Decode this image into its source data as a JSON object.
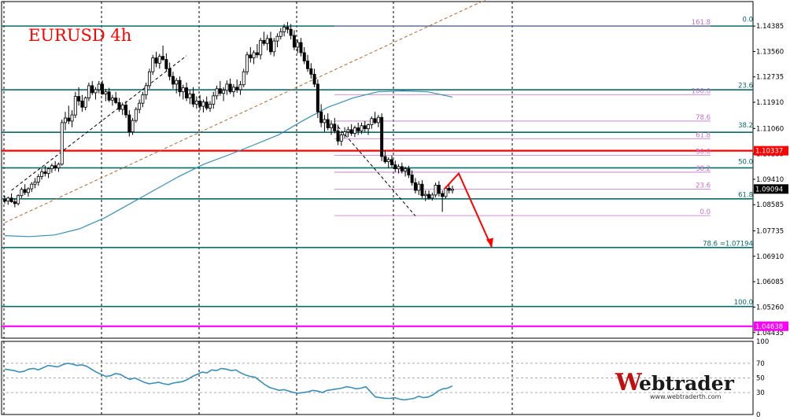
{
  "chart_data": [
    {
      "type": "candlestick",
      "title": "EURUSD 4h",
      "symbol": "EURUSD",
      "timeframe": "4h",
      "ylim": [
        1.0425,
        1.1518
      ],
      "price_axis_ticks": [
        "1.14385",
        "1.13560",
        "1.12735",
        "1.11910",
        "1.11060",
        "1.10235",
        "1.09410",
        "1.08585",
        "1.07735",
        "1.06910",
        "1.06085",
        "1.05260",
        "1.04435"
      ],
      "current_price": "1.09094",
      "candles_ohlc": [
        [
          1.0875,
          1.0888,
          1.0862,
          1.087
        ],
        [
          1.087,
          1.0885,
          1.0858,
          1.088
        ],
        [
          1.088,
          1.0895,
          1.0865,
          1.0868
        ],
        [
          1.0868,
          1.088,
          1.085,
          1.0862
        ],
        [
          1.0862,
          1.0892,
          1.0856,
          1.0888
        ],
        [
          1.0888,
          1.0915,
          1.088,
          1.0908
        ],
        [
          1.0908,
          1.0925,
          1.089,
          1.0898
        ],
        [
          1.0898,
          1.0915,
          1.0885,
          1.091
        ],
        [
          1.091,
          1.0932,
          1.09,
          1.0925
        ],
        [
          1.0925,
          1.0945,
          1.0912,
          1.0932
        ],
        [
          1.0932,
          1.0958,
          1.092,
          1.095
        ],
        [
          1.095,
          1.0975,
          1.094,
          1.0965
        ],
        [
          1.0965,
          1.0985,
          1.095,
          1.096
        ],
        [
          1.096,
          1.098,
          1.0945,
          1.0975
        ],
        [
          1.0975,
          1.0992,
          1.0962,
          1.0985
        ],
        [
          1.0985,
          1.1,
          1.0968,
          1.0978
        ],
        [
          1.0978,
          1.0995,
          1.0965,
          1.099
        ],
        [
          1.099,
          1.1135,
          1.0985,
          1.1125
        ],
        [
          1.1125,
          1.116,
          1.11,
          1.114
        ],
        [
          1.114,
          1.118,
          1.112,
          1.113
        ],
        [
          1.113,
          1.1165,
          1.111,
          1.115
        ],
        [
          1.115,
          1.1225,
          1.114,
          1.121
        ],
        [
          1.121,
          1.124,
          1.118,
          1.1195
        ],
        [
          1.1195,
          1.1215,
          1.116,
          1.1175
        ],
        [
          1.1175,
          1.121,
          1.1165,
          1.1205
        ],
        [
          1.1205,
          1.1255,
          1.1195,
          1.1245
        ],
        [
          1.1245,
          1.126,
          1.1215,
          1.1222
        ],
        [
          1.1222,
          1.124,
          1.12,
          1.1232
        ],
        [
          1.1232,
          1.126,
          1.122,
          1.125
        ],
        [
          1.125,
          1.1262,
          1.1215,
          1.1218
        ],
        [
          1.1218,
          1.1235,
          1.1195,
          1.1225
        ],
        [
          1.1225,
          1.1238,
          1.1192,
          1.1198
        ],
        [
          1.1198,
          1.1215,
          1.118,
          1.1205
        ],
        [
          1.1205,
          1.1225,
          1.1185,
          1.119
        ],
        [
          1.119,
          1.1205,
          1.116,
          1.1168
        ],
        [
          1.1168,
          1.119,
          1.115,
          1.1182
        ],
        [
          1.1182,
          1.1195,
          1.114,
          1.115
        ],
        [
          1.115,
          1.1165,
          1.108,
          1.1095
        ],
        [
          1.1095,
          1.114,
          1.1085,
          1.1132
        ],
        [
          1.1132,
          1.1175,
          1.1125,
          1.1168
        ],
        [
          1.1168,
          1.12,
          1.1155,
          1.1188
        ],
        [
          1.1188,
          1.1225,
          1.1175,
          1.1215
        ],
        [
          1.1215,
          1.1255,
          1.12,
          1.1245
        ],
        [
          1.1245,
          1.13,
          1.1235,
          1.129
        ],
        [
          1.129,
          1.1345,
          1.128,
          1.1335
        ],
        [
          1.1335,
          1.1355,
          1.1305,
          1.1318
        ],
        [
          1.1318,
          1.1348,
          1.13,
          1.134
        ],
        [
          1.134,
          1.1375,
          1.1325,
          1.133
        ],
        [
          1.133,
          1.135,
          1.129,
          1.13
        ],
        [
          1.13,
          1.132,
          1.1262,
          1.1275
        ],
        [
          1.1275,
          1.129,
          1.1235,
          1.125
        ],
        [
          1.125,
          1.127,
          1.122,
          1.1262
        ],
        [
          1.1262,
          1.1275,
          1.121,
          1.1225
        ],
        [
          1.1225,
          1.1248,
          1.12,
          1.1238
        ],
        [
          1.1238,
          1.1255,
          1.1195,
          1.1205
        ],
        [
          1.1205,
          1.123,
          1.1185,
          1.1218
        ],
        [
          1.1218,
          1.124,
          1.1175,
          1.1185
        ],
        [
          1.1185,
          1.121,
          1.117,
          1.1195
        ],
        [
          1.1195,
          1.1215,
          1.1165,
          1.1178
        ],
        [
          1.1178,
          1.12,
          1.1158,
          1.1192
        ],
        [
          1.1192,
          1.121,
          1.1165,
          1.1172
        ],
        [
          1.1172,
          1.1195,
          1.116,
          1.1185
        ],
        [
          1.1185,
          1.1225,
          1.117,
          1.1212
        ],
        [
          1.1212,
          1.1245,
          1.12,
          1.1235
        ],
        [
          1.1235,
          1.126,
          1.1212,
          1.122
        ],
        [
          1.122,
          1.124,
          1.1195,
          1.123
        ],
        [
          1.123,
          1.1262,
          1.1215,
          1.125
        ],
        [
          1.125,
          1.1268,
          1.1218,
          1.1225
        ],
        [
          1.1225,
          1.125,
          1.1208,
          1.124
        ],
        [
          1.124,
          1.1265,
          1.1222,
          1.1232
        ],
        [
          1.1232,
          1.126,
          1.1215,
          1.1248
        ],
        [
          1.1248,
          1.13,
          1.124,
          1.129
        ],
        [
          1.129,
          1.1355,
          1.128,
          1.1345
        ],
        [
          1.1345,
          1.137,
          1.132,
          1.1335
        ],
        [
          1.1335,
          1.136,
          1.1315,
          1.1352
        ],
        [
          1.1352,
          1.138,
          1.1335,
          1.1345
        ],
        [
          1.1345,
          1.14,
          1.133,
          1.1392
        ],
        [
          1.1392,
          1.142,
          1.1375,
          1.1382
        ],
        [
          1.1382,
          1.141,
          1.136,
          1.1398
        ],
        [
          1.1398,
          1.142,
          1.1345,
          1.1355
        ],
        [
          1.1355,
          1.14,
          1.134,
          1.139
        ],
        [
          1.139,
          1.1415,
          1.137,
          1.1405
        ],
        [
          1.1405,
          1.1432,
          1.1395,
          1.142
        ],
        [
          1.142,
          1.1445,
          1.1405,
          1.1435
        ],
        [
          1.1435,
          1.1452,
          1.1415,
          1.1428
        ],
        [
          1.1428,
          1.1445,
          1.1395,
          1.1408
        ],
        [
          1.1408,
          1.1425,
          1.136,
          1.137
        ],
        [
          1.137,
          1.1395,
          1.135,
          1.1385
        ],
        [
          1.1385,
          1.14,
          1.134,
          1.1352
        ],
        [
          1.1352,
          1.137,
          1.1315,
          1.1325
        ],
        [
          1.1325,
          1.1345,
          1.129,
          1.13
        ],
        [
          1.13,
          1.1318,
          1.1268,
          1.1282
        ],
        [
          1.1282,
          1.13,
          1.124,
          1.125
        ],
        [
          1.125,
          1.1265,
          1.114,
          1.116
        ],
        [
          1.116,
          1.1185,
          1.111,
          1.1125
        ],
        [
          1.1125,
          1.115,
          1.1095,
          1.1135
        ],
        [
          1.1135,
          1.1155,
          1.11,
          1.1108
        ],
        [
          1.1108,
          1.1132,
          1.1085,
          1.112
        ],
        [
          1.112,
          1.114,
          1.109,
          1.1098
        ],
        [
          1.1098,
          1.1118,
          1.1052,
          1.1065
        ],
        [
          1.1065,
          1.1095,
          1.105,
          1.1085
        ],
        [
          1.1085,
          1.111,
          1.1075,
          1.1095
        ],
        [
          1.1095,
          1.1112,
          1.1078,
          1.1102
        ],
        [
          1.1102,
          1.112,
          1.1082,
          1.109
        ],
        [
          1.109,
          1.1115,
          1.1078,
          1.1108
        ],
        [
          1.1108,
          1.1125,
          1.1085,
          1.1098
        ],
        [
          1.1098,
          1.1125,
          1.1088,
          1.1115
        ],
        [
          1.1115,
          1.113,
          1.1095,
          1.1105
        ],
        [
          1.1105,
          1.1122,
          1.1085,
          1.1118
        ],
        [
          1.1118,
          1.1145,
          1.1105,
          1.1138
        ],
        [
          1.1138,
          1.116,
          1.112,
          1.1125
        ],
        [
          1.1125,
          1.115,
          1.111,
          1.1142
        ],
        [
          1.1142,
          1.1155,
          1.1,
          1.1015
        ],
        [
          1.1015,
          1.1035,
          1.0992,
          1.0998
        ],
        [
          1.0998,
          1.1012,
          1.0978,
          1.1005
        ],
        [
          1.1005,
          1.1018,
          1.098,
          1.0988
        ],
        [
          1.0988,
          1.1002,
          1.0965,
          1.0975
        ],
        [
          1.0975,
          1.099,
          1.096,
          1.0982
        ],
        [
          1.0982,
          1.0995,
          1.096,
          1.0968
        ],
        [
          1.0968,
          1.0982,
          1.095,
          1.0975
        ],
        [
          1.0975,
          1.0985,
          1.0945,
          1.0955
        ],
        [
          1.0955,
          1.097,
          1.092,
          1.093
        ],
        [
          1.093,
          1.0945,
          1.0895,
          1.0905
        ],
        [
          1.0905,
          1.0935,
          1.089,
          1.0925
        ],
        [
          1.0925,
          1.0938,
          1.088,
          1.0888
        ],
        [
          1.0888,
          1.0905,
          1.087,
          1.0892
        ],
        [
          1.0892,
          1.0905,
          1.0875,
          1.088
        ],
        [
          1.088,
          1.0898,
          1.0872,
          1.089
        ],
        [
          1.089,
          1.093,
          1.0882,
          1.0922
        ],
        [
          1.0922,
          1.0935,
          1.0885,
          1.0895
        ],
        [
          1.0895,
          1.0905,
          1.0835,
          1.0885
        ],
        [
          1.0885,
          1.0918,
          1.0878,
          1.0912
        ],
        [
          1.0912,
          1.0925,
          1.0895,
          1.0905
        ],
        [
          1.0905,
          1.092,
          1.0895,
          1.0909
        ]
      ],
      "moving_average": [
        1.0758,
        1.0755,
        1.076,
        1.078,
        1.0815,
        1.086,
        1.0905,
        1.095,
        1.099,
        1.102,
        1.1052,
        1.1085,
        1.1132,
        1.1175,
        1.1205,
        1.1225,
        1.1228,
        1.1225,
        1.1208
      ],
      "horizontal_levels": [
        {
          "price": 1.14385,
          "color": "#0b6b6b"
        },
        {
          "price": 1.12315,
          "color": "#0b6b6b"
        },
        {
          "price": 1.10935,
          "color": "#0b6b6b"
        },
        {
          "price": 1.10337,
          "color": "#ff0000",
          "label": "1.10337"
        },
        {
          "price": 1.0978,
          "color": "#0b6b6b"
        },
        {
          "price": 1.08775,
          "color": "#0b6b6b"
        },
        {
          "price": 1.07194,
          "color": "#0b6b6b"
        },
        {
          "price": 1.0528,
          "color": "#0b6b6b"
        },
        {
          "price": 1.04638,
          "color": "#ff00ff",
          "label": "1.04638"
        }
      ],
      "fib_main": [
        {
          "label": "0.0",
          "price": 1.1448
        },
        {
          "label": "23.6",
          "price": 1.1233
        },
        {
          "label": "38.2",
          "price": 1.1104
        },
        {
          "label": "50.0",
          "price": 1.0986
        },
        {
          "label": "61.8",
          "price": 1.0878
        },
        {
          "label": "78.6 =1.07194",
          "price": 1.07194
        },
        {
          "label": "100.0",
          "price": 1.053
        }
      ],
      "fib_secondary": [
        {
          "label": "161.8",
          "price": 1.14385
        },
        {
          "label": "100.0",
          "price": 1.1216
        },
        {
          "label": "78.6",
          "price": 1.113
        },
        {
          "label": "61.8",
          "price": 1.1073
        },
        {
          "label": "50.0",
          "price": 1.1019
        },
        {
          "label": "38.2",
          "price": 1.0964
        },
        {
          "label": "23.6",
          "price": 1.0909
        },
        {
          "label": "0.0",
          "price": 1.0823
        }
      ],
      "arrow_path_prices": [
        1.091,
        1.096,
        1.072
      ],
      "colors": {
        "bull": "#ffffff",
        "bear": "#000000",
        "candle_edge": "#000000",
        "teal_level": "#0b6b6b",
        "support": "#ff0000",
        "target": "#ff00ff",
        "ma": "#3a8fb8",
        "fib_secondary": "#c070c8",
        "fib_main_text": "#0b6b6b",
        "trendline": "#b5642a",
        "arrow": "#ff0000",
        "grid": "#000000"
      }
    },
    {
      "type": "line",
      "name": "RSI",
      "ylim": [
        0,
        100
      ],
      "ticks": [
        "100",
        "70",
        "50",
        "30",
        "0"
      ],
      "levels": [
        70,
        50,
        30
      ],
      "values": [
        62,
        61,
        60,
        58,
        59,
        62,
        63,
        61,
        64,
        67,
        66,
        65,
        68,
        70,
        69,
        67,
        68,
        66,
        62,
        58,
        55,
        52,
        53,
        56,
        55,
        51,
        48,
        50,
        47,
        44,
        42,
        43,
        44,
        42,
        41,
        43,
        44,
        45,
        48,
        52,
        55,
        58,
        57,
        61,
        60,
        63,
        62,
        60,
        61,
        57,
        54,
        52,
        51,
        46,
        41,
        37,
        35,
        33,
        34,
        32,
        30,
        29,
        30,
        31,
        33,
        32,
        30,
        33,
        34,
        35,
        36,
        38,
        37,
        35,
        36,
        38,
        31,
        24,
        23,
        22,
        22,
        23,
        21,
        20,
        21,
        22,
        25,
        23,
        24,
        27,
        32,
        35,
        36,
        39
      ]
    }
  ],
  "watermark": {
    "brand": "ebtrader",
    "brand_initial": "W",
    "url": "www.webtraderth.com"
  }
}
